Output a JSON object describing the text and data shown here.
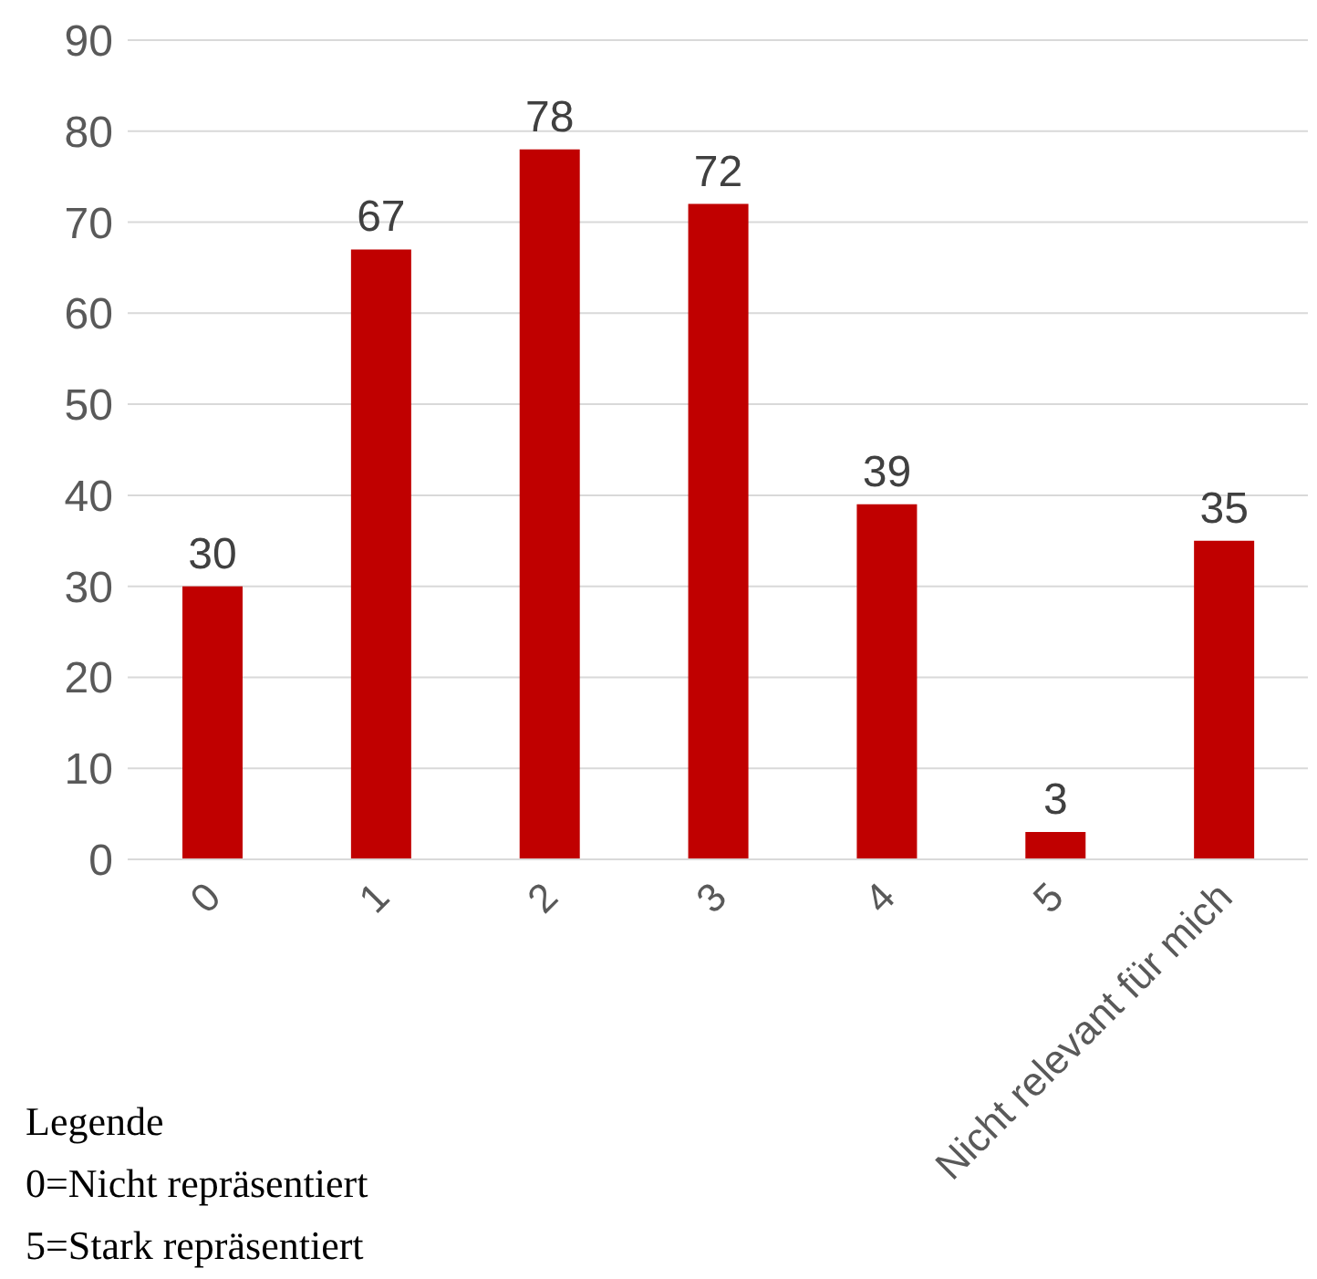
{
  "chart_data": {
    "type": "bar",
    "categories": [
      "0",
      "1",
      "2",
      "3",
      "4",
      "5",
      "Nicht relevant für mich"
    ],
    "values": [
      30,
      67,
      78,
      72,
      39,
      3,
      35
    ],
    "color": "#c00000",
    "ylim": [
      0,
      90
    ],
    "yticks": [
      0,
      10,
      20,
      30,
      40,
      50,
      60,
      70,
      80,
      90
    ],
    "grid": "y",
    "legend": false,
    "data_labels": true,
    "annotations": [
      "Legende",
      "0=Nicht repräsentiert",
      "5=Stark repräsentiert"
    ]
  }
}
